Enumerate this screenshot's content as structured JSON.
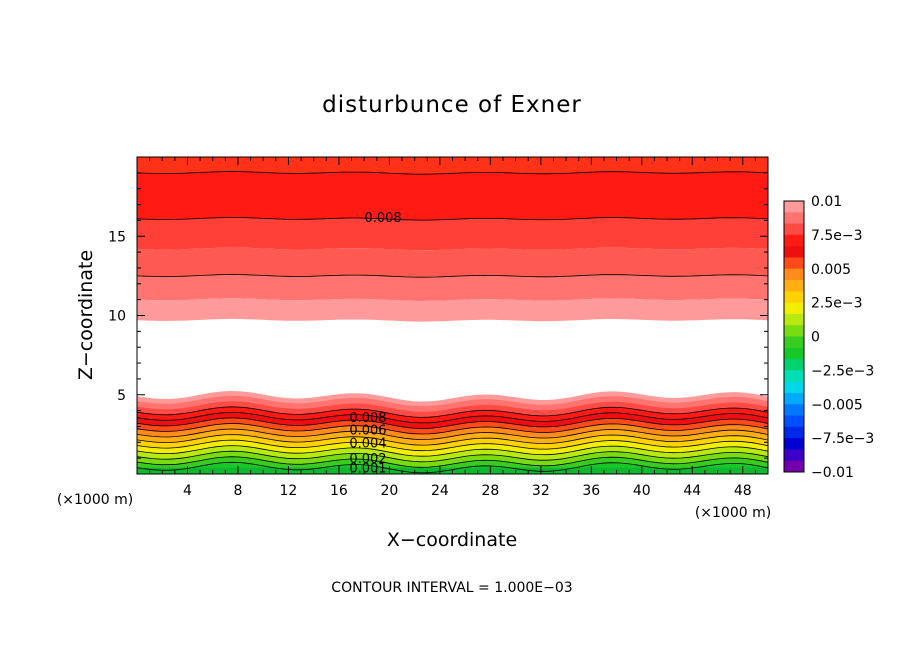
{
  "chart_data": {
    "type": "contour",
    "title": "disturbunce of Exner",
    "xlabel": "X−coordinate",
    "ylabel": "Z−coordinate",
    "x_unit_left": "(×1000 m)",
    "x_unit_right": "(×1000 m)",
    "xlim": [
      0,
      50
    ],
    "ylim": [
      0,
      20
    ],
    "x_ticks": [
      4,
      8,
      12,
      16,
      20,
      24,
      28,
      32,
      36,
      40,
      44,
      48
    ],
    "x_tick_labels": [
      "4",
      "8",
      "12",
      "16",
      "20",
      "24",
      "28",
      "32",
      "36",
      "40",
      "44",
      "48"
    ],
    "y_ticks": [
      5,
      10,
      15
    ],
    "y_tick_labels": [
      "5",
      "10",
      "15"
    ],
    "footer": "CONTOUR INTERVAL = 1.000E−03",
    "contour_labels": [
      {
        "text": "0.008",
        "x": 19.5,
        "y": 16.2
      },
      {
        "text": "0.008",
        "x": 18.3,
        "y": 3.6
      },
      {
        "text": "0.006",
        "x": 18.3,
        "y": 2.8
      },
      {
        "text": "0.004",
        "x": 18.3,
        "y": 2.0
      },
      {
        "text": "0.002",
        "x": 18.3,
        "y": 1.0
      },
      {
        "text": "0.001",
        "x": 18.3,
        "y": 0.4
      }
    ],
    "upper_bands": [
      {
        "y_low": 19.0,
        "y_high": 20.0,
        "color": "#ff3218"
      },
      {
        "y_low": 16.1,
        "y_high": 19.0,
        "color": "#ff1a14"
      },
      {
        "y_low": 14.2,
        "y_high": 16.1,
        "color": "#ff4038"
      },
      {
        "y_low": 12.5,
        "y_high": 14.2,
        "color": "#ff5a52"
      },
      {
        "y_low": 11.0,
        "y_high": 12.5,
        "color": "#ff7370"
      },
      {
        "y_low": 9.7,
        "y_high": 11.0,
        "color": "#ff9a9a"
      }
    ],
    "lower_bands": [
      {
        "y": 4.9,
        "color": "#ff9a9a"
      },
      {
        "y": 4.6,
        "color": "#ff7370"
      },
      {
        "y": 4.25,
        "color": "#ff4b45"
      },
      {
        "y": 3.9,
        "color": "#ff1a14"
      },
      {
        "y": 3.55,
        "color": "#ee1010"
      },
      {
        "y": 3.2,
        "color": "#ff4a1a"
      },
      {
        "y": 2.85,
        "color": "#ff8c1a"
      },
      {
        "y": 2.5,
        "color": "#ffae14"
      },
      {
        "y": 2.15,
        "color": "#ffd200"
      },
      {
        "y": 1.8,
        "color": "#f2ee00"
      },
      {
        "y": 1.45,
        "color": "#b8ea10"
      },
      {
        "y": 1.1,
        "color": "#78dc10"
      },
      {
        "y": 0.75,
        "color": "#38cc20"
      },
      {
        "y": 0.4,
        "color": "#18c828"
      }
    ],
    "colorbar": {
      "labels": [
        "0.01",
        "7.5e−3",
        "0.005",
        "2.5e−3",
        "0",
        "−2.5e−3",
        "−0.005",
        "−7.5e−3",
        "−0.01"
      ],
      "colors_top_to_bottom": [
        "#ff9a9a",
        "#ff7370",
        "#ff4b45",
        "#ff1a14",
        "#ee1010",
        "#ff4a1a",
        "#ff8c1a",
        "#ffae14",
        "#ffd200",
        "#f2ee00",
        "#b8ea10",
        "#78dc10",
        "#38cc20",
        "#18c828",
        "#00d26e",
        "#00e0b4",
        "#00d8e8",
        "#00aaff",
        "#0078ff",
        "#0050ff",
        "#0028e6",
        "#0000d2",
        "#3c00c8",
        "#7300aa"
      ]
    }
  }
}
